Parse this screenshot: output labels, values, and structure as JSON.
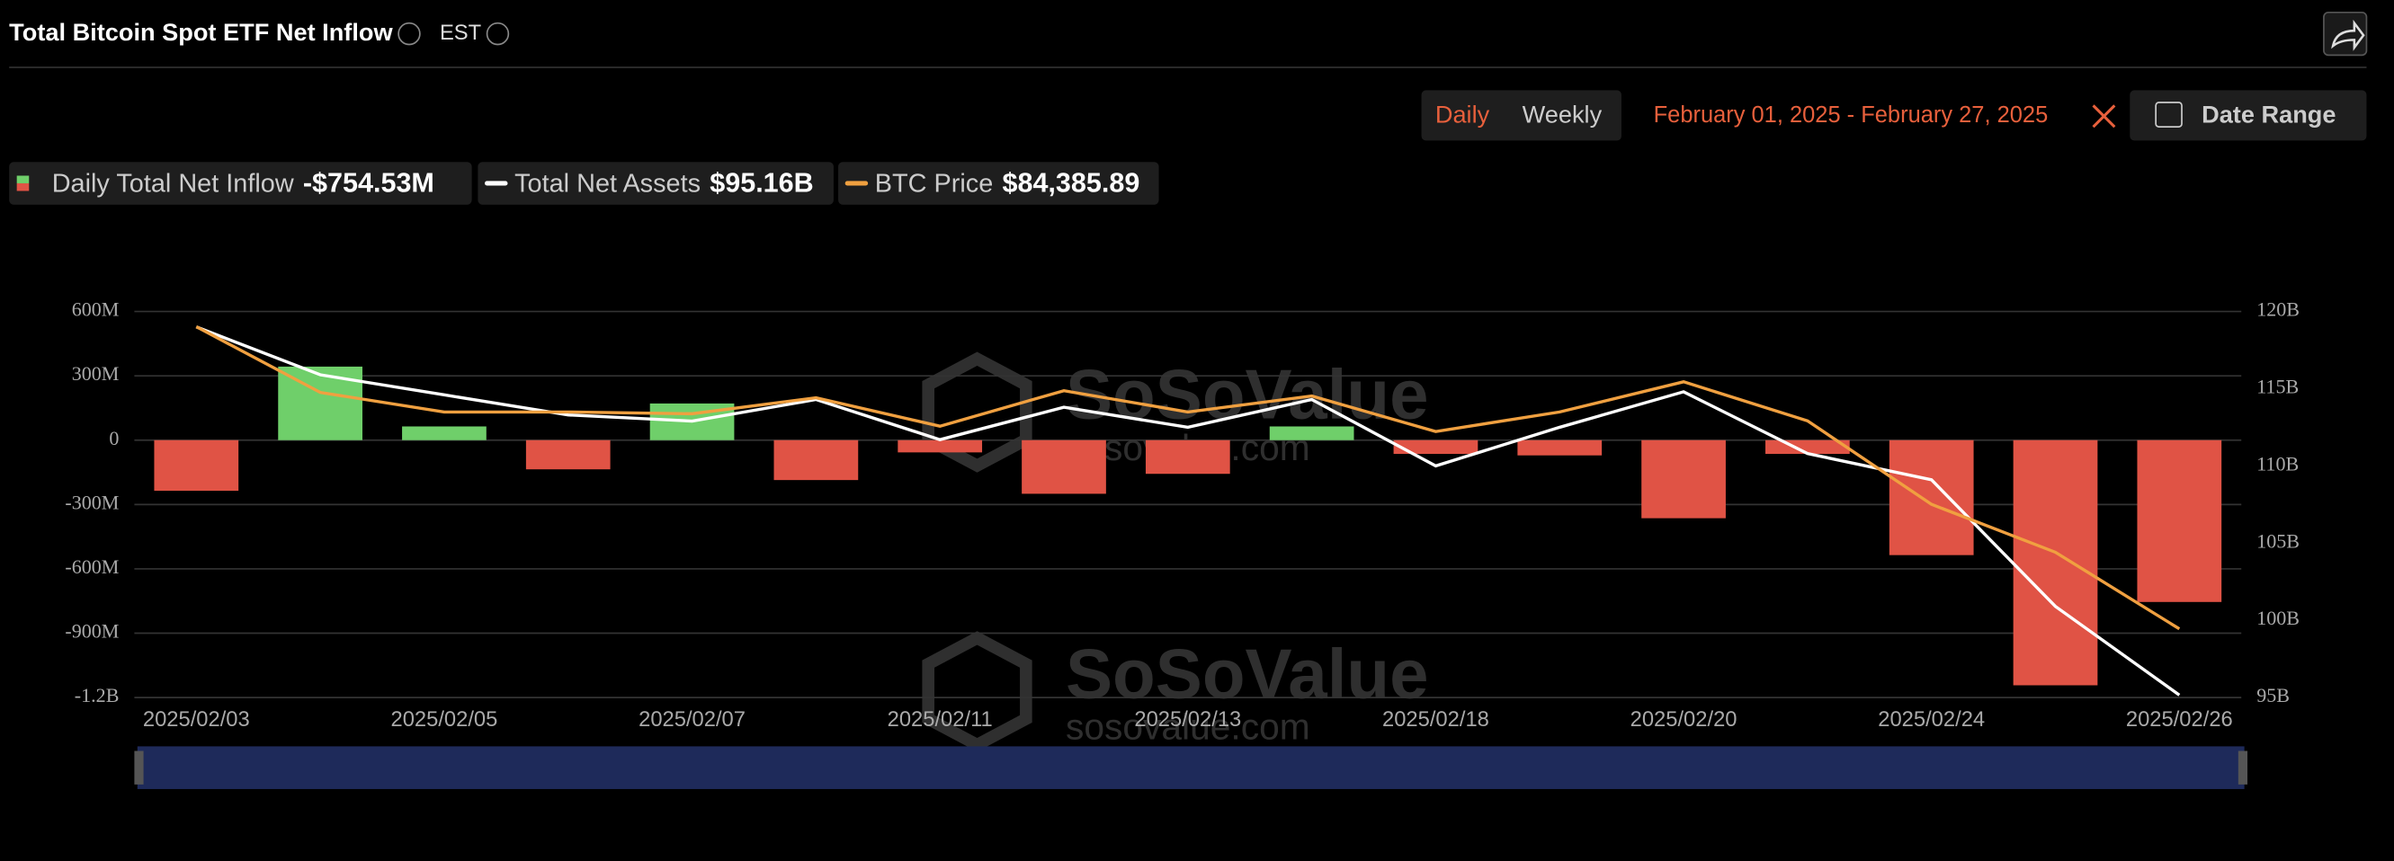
{
  "header": {
    "title": "Total Bitcoin Spot ETF Net Inflow",
    "timezone": "EST"
  },
  "controls": {
    "daily": "Daily",
    "weekly": "Weekly",
    "date_range_text": "February 01, 2025 - February 27, 2025",
    "date_range_button": "Date Range"
  },
  "watermark": {
    "brand": "SoSoValue",
    "site": "sosovalue.com"
  },
  "chart_data": {
    "type": "bar-line",
    "categories": [
      "2025/02/03",
      null,
      "2025/02/05",
      null,
      "2025/02/07",
      null,
      "2025/02/11",
      null,
      "2025/02/13",
      null,
      "2025/02/18",
      null,
      "2025/02/20",
      null,
      "2025/02/24",
      null,
      "2025/02/26"
    ],
    "series": [
      {
        "name": "Daily Total Net Inflow",
        "latest_label": "-$754.53M",
        "type": "bar",
        "positive_color": "#6fcf6a",
        "negative_color": "#e05345",
        "values": [
          -236,
          343,
          64,
          -136,
          171,
          -186,
          -57,
          -250,
          -157,
          64,
          -64,
          -71,
          -364,
          -64,
          -536,
          -1143,
          -754.53
        ]
      },
      {
        "name": "Total Net Assets",
        "latest_label": "$95.16B",
        "type": "line",
        "axis": "y2",
        "color": "#ffffff",
        "values": [
          119.0,
          115.9,
          114.6,
          113.3,
          112.9,
          114.3,
          111.7,
          113.8,
          112.5,
          114.3,
          110.0,
          112.5,
          114.8,
          110.8,
          109.1,
          100.9,
          95.16
        ]
      },
      {
        "name": "BTC Price",
        "latest_label": "$84,385.89",
        "type": "line",
        "color": "#f0a040",
        "values": [
          101400,
          97700,
          96600,
          96600,
          96500,
          97400,
          95800,
          97800,
          96600,
          97500,
          95500,
          96600,
          98300,
          96100,
          91400,
          88700,
          84385.89
        ]
      }
    ],
    "ylim": [
      -1200,
      600
    ],
    "yticks": [
      {
        "value": 600,
        "label": "600M"
      },
      {
        "value": 300,
        "label": "300M"
      },
      0,
      {
        "value": -300,
        "label": "-300M"
      },
      {
        "value": -600,
        "label": "-600M"
      },
      {
        "value": -900,
        "label": "-900M"
      },
      {
        "value": -1200,
        "label": "-1.2B"
      }
    ],
    "y2lim": [
      95,
      120
    ],
    "y2ticks": [
      {
        "value": 120,
        "label": "120B"
      },
      {
        "value": 115,
        "label": "115B"
      },
      {
        "value": 110,
        "label": "110B"
      },
      {
        "value": 105,
        "label": "105B"
      },
      {
        "value": 100,
        "label": "100B"
      },
      {
        "value": 95,
        "label": "95B"
      }
    ],
    "grid": true
  }
}
